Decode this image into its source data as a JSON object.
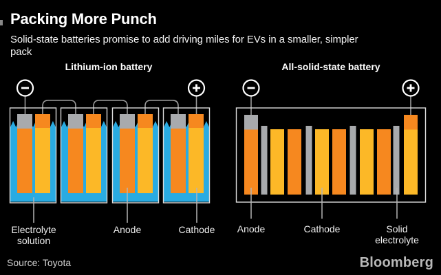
{
  "header": {
    "title": "Packing More Punch",
    "subtitle": "Solid-state batteries promise to add driving miles for EVs in a smaller, simpler pack",
    "subtitle_lines": [
      "Solid-state batteries promise to add driving miles for EVs in a smaller, simpler",
      "pack"
    ]
  },
  "diagrams": {
    "lithium_ion": {
      "title": "Lithium-ion battery",
      "cell_count": 4,
      "terminals": {
        "negative": "−",
        "positive": "+"
      },
      "callouts": [
        {
          "lines": [
            "Electrolyte",
            "solution"
          ]
        },
        {
          "lines": [
            "Anode",
            ""
          ]
        },
        {
          "lines": [
            "Cathode",
            ""
          ]
        }
      ]
    },
    "solid_state": {
      "title": "All-solid-state battery",
      "terminals": {
        "negative": "−",
        "positive": "+"
      },
      "bar_sequence": [
        "anode-capped",
        "solid-electrolyte",
        "cathode",
        "anode",
        "solid-electrolyte",
        "cathode",
        "anode",
        "solid-electrolyte",
        "cathode",
        "anode",
        "solid-electrolyte",
        "cathode-capped"
      ],
      "callouts": [
        {
          "lines": [
            "Anode",
            ""
          ]
        },
        {
          "lines": [
            "Cathode",
            ""
          ]
        },
        {
          "lines": [
            "Solid",
            "electrolyte"
          ]
        }
      ]
    }
  },
  "colors": {
    "background": "#000000",
    "electrolyte_solution": "#29ABE2",
    "anode_orange": "#F6881F",
    "cathode_yellow": "#FCB827",
    "collector_gray": "#A8AAAD",
    "case_outline": "#DCDCDC",
    "wire": "#9C9C9C",
    "leader": "#B5B5B5",
    "terminal_ring": "#FFFFFF"
  },
  "footer": {
    "source": "Source: Toyota",
    "brand": "Bloomberg"
  }
}
